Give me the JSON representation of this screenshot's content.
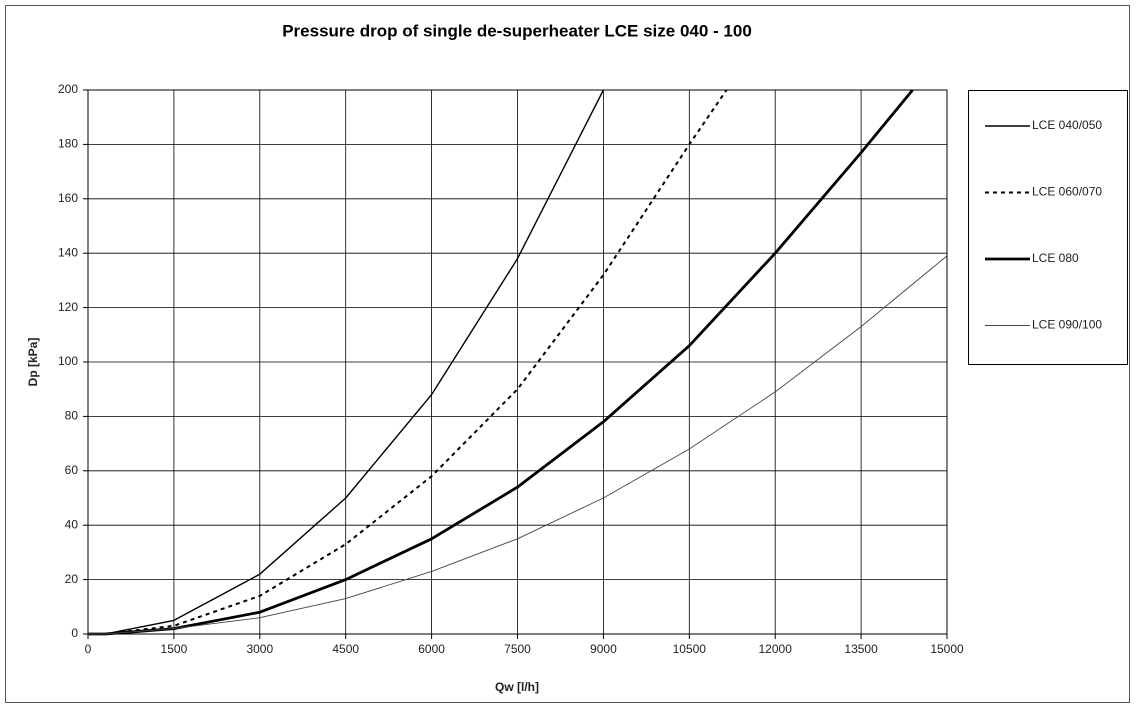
{
  "chart_data": {
    "type": "line",
    "title": "Pressure drop of single de-superheater LCE size 040 - 100",
    "x_label": "Qw [l/h]",
    "y_label": "Dp [kPa]",
    "xlim": [
      0,
      15000
    ],
    "xticks": [
      0,
      1500,
      3000,
      4500,
      6000,
      7500,
      9000,
      10500,
      12000,
      13500,
      15000
    ],
    "ylim": [
      0,
      200
    ],
    "yticks": [
      0,
      20,
      40,
      60,
      80,
      100,
      120,
      140,
      160,
      180,
      200
    ],
    "grid": true,
    "legend": "right",
    "series": [
      {
        "name": "LCE 040/050",
        "color": "#000000",
        "style": "solid",
        "x": [
          0,
          300,
          1500,
          3000,
          4500,
          6000,
          7500,
          9000
        ],
        "values": [
          0,
          0,
          5,
          22,
          50,
          88,
          138,
          200
        ]
      },
      {
        "name": "LCE 060/070",
        "color": "#000000",
        "style": "dashed",
        "x": [
          0,
          300,
          1500,
          3000,
          4500,
          6000,
          7500,
          9000,
          10500,
          11150
        ],
        "values": [
          0,
          0,
          3,
          14,
          33,
          58,
          90,
          132,
          180,
          200
        ]
      },
      {
        "name": "LCE 080",
        "color": "#000000",
        "style": "thick",
        "x": [
          0,
          300,
          1500,
          3000,
          4500,
          6000,
          7500,
          9000,
          10500,
          12000,
          13500,
          14400
        ],
        "values": [
          0,
          0,
          2,
          8,
          20,
          35,
          54,
          78,
          106,
          140,
          177,
          200
        ]
      },
      {
        "name": "LCE 090/100",
        "color": "#444444",
        "style": "thin",
        "x": [
          0,
          300,
          1500,
          3000,
          4500,
          6000,
          7500,
          9000,
          10500,
          12000,
          13500,
          15000
        ],
        "values": [
          0,
          0,
          2,
          6,
          13,
          23,
          35,
          50,
          68,
          89,
          113,
          139
        ]
      }
    ]
  }
}
